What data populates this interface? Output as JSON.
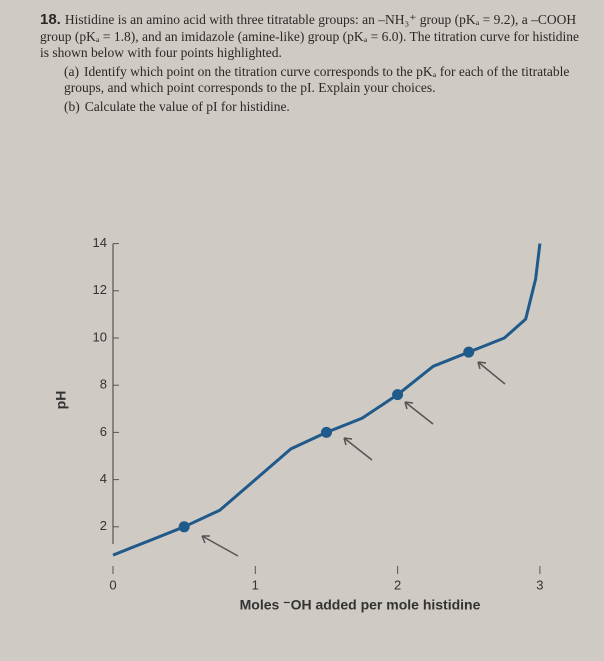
{
  "problem": {
    "number": "18.",
    "text": "Histidine is an amino acid with three titratable groups: an –NH₃⁺ group (pKₐ = 9.2), a –COOH group (pKₐ = 1.8), and an imidazole (amine-like) group (pKₐ = 6.0). The titration curve for histidine is shown below with four points highlighted.",
    "parts": [
      {
        "label": "(a)",
        "text": "Identify which point on the titration curve corresponds to the pKₐ for each of the titratable groups, and which point corresponds to the pI. Explain your choices."
      },
      {
        "label": "(b)",
        "text": "Calculate the value of pI for histidine."
      }
    ]
  },
  "chart_data": {
    "type": "line",
    "x_label": "Moles ⁻OH added per mole histidine",
    "y_label": "pH",
    "xlim": [
      0,
      3.1
    ],
    "ylim": [
      0,
      14
    ],
    "xticks": [
      0,
      1,
      2,
      3
    ],
    "yticks": [
      2,
      4,
      6,
      8,
      10,
      12,
      14
    ],
    "series": [
      {
        "color": "#1f5a8a",
        "x": [
          0,
          0.25,
          0.5,
          0.75,
          1,
          1.25,
          1.5,
          1.75,
          2,
          2.25,
          2.5,
          2.75,
          2.9,
          2.97,
          3.0
        ],
        "values": [
          0.8,
          1.4,
          2.0,
          2.7,
          4.0,
          5.3,
          6.0,
          6.6,
          7.6,
          8.8,
          9.4,
          10.0,
          10.8,
          12.5,
          14.0
        ]
      }
    ],
    "markers": {
      "color": "#1f5a8a",
      "x": [
        0.5,
        1.5,
        2.0,
        2.5
      ],
      "values": [
        2.0,
        6.0,
        7.6,
        9.4
      ]
    }
  }
}
